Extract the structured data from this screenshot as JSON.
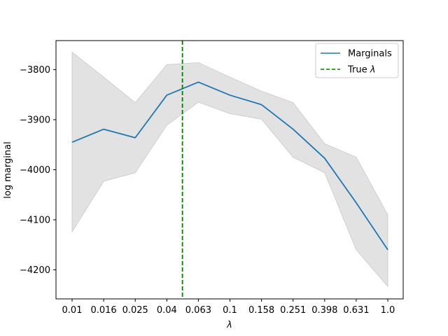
{
  "chart_data": {
    "type": "line",
    "xlabel": "λ",
    "ylabel": "log marginal",
    "x_tick_labels": [
      "0.01",
      "0.016",
      "0.025",
      "0.04",
      "0.063",
      "0.1",
      "0.158",
      "0.251",
      "0.398",
      "0.631",
      "1.0"
    ],
    "x_scale": "log",
    "ylim": [
      -4258,
      -3742
    ],
    "y_ticks": [
      -4200,
      -4100,
      -4000,
      -3900,
      -3800
    ],
    "y_tick_labels": [
      "−4200",
      "−4100",
      "−4000",
      "−3900",
      "−3800"
    ],
    "grid": false,
    "legend_position": "top-right",
    "series": [
      {
        "name": "Marginals",
        "kind": "line",
        "color": "#1f77b4",
        "values": [
          -3945,
          -3919,
          -3936,
          -3851,
          -3825,
          -3851,
          -3870,
          -3919,
          -3977,
          -4066,
          -4160
        ],
        "band_upper": [
          -3765,
          -3815,
          -3866,
          -3790,
          -3786,
          -3815,
          -3843,
          -3866,
          -3948,
          -3975,
          -4090
        ],
        "band_lower": [
          -4124,
          -4023,
          -4006,
          -3911,
          -3865,
          -3888,
          -3899,
          -3975,
          -4006,
          -4160,
          -4233
        ],
        "band_color": "#e2e2e2"
      },
      {
        "name": "True λ",
        "legend_label": "True ",
        "legend_symbol": "λ",
        "kind": "vline",
        "color": "#008000",
        "x_value": 0.05
      }
    ]
  }
}
